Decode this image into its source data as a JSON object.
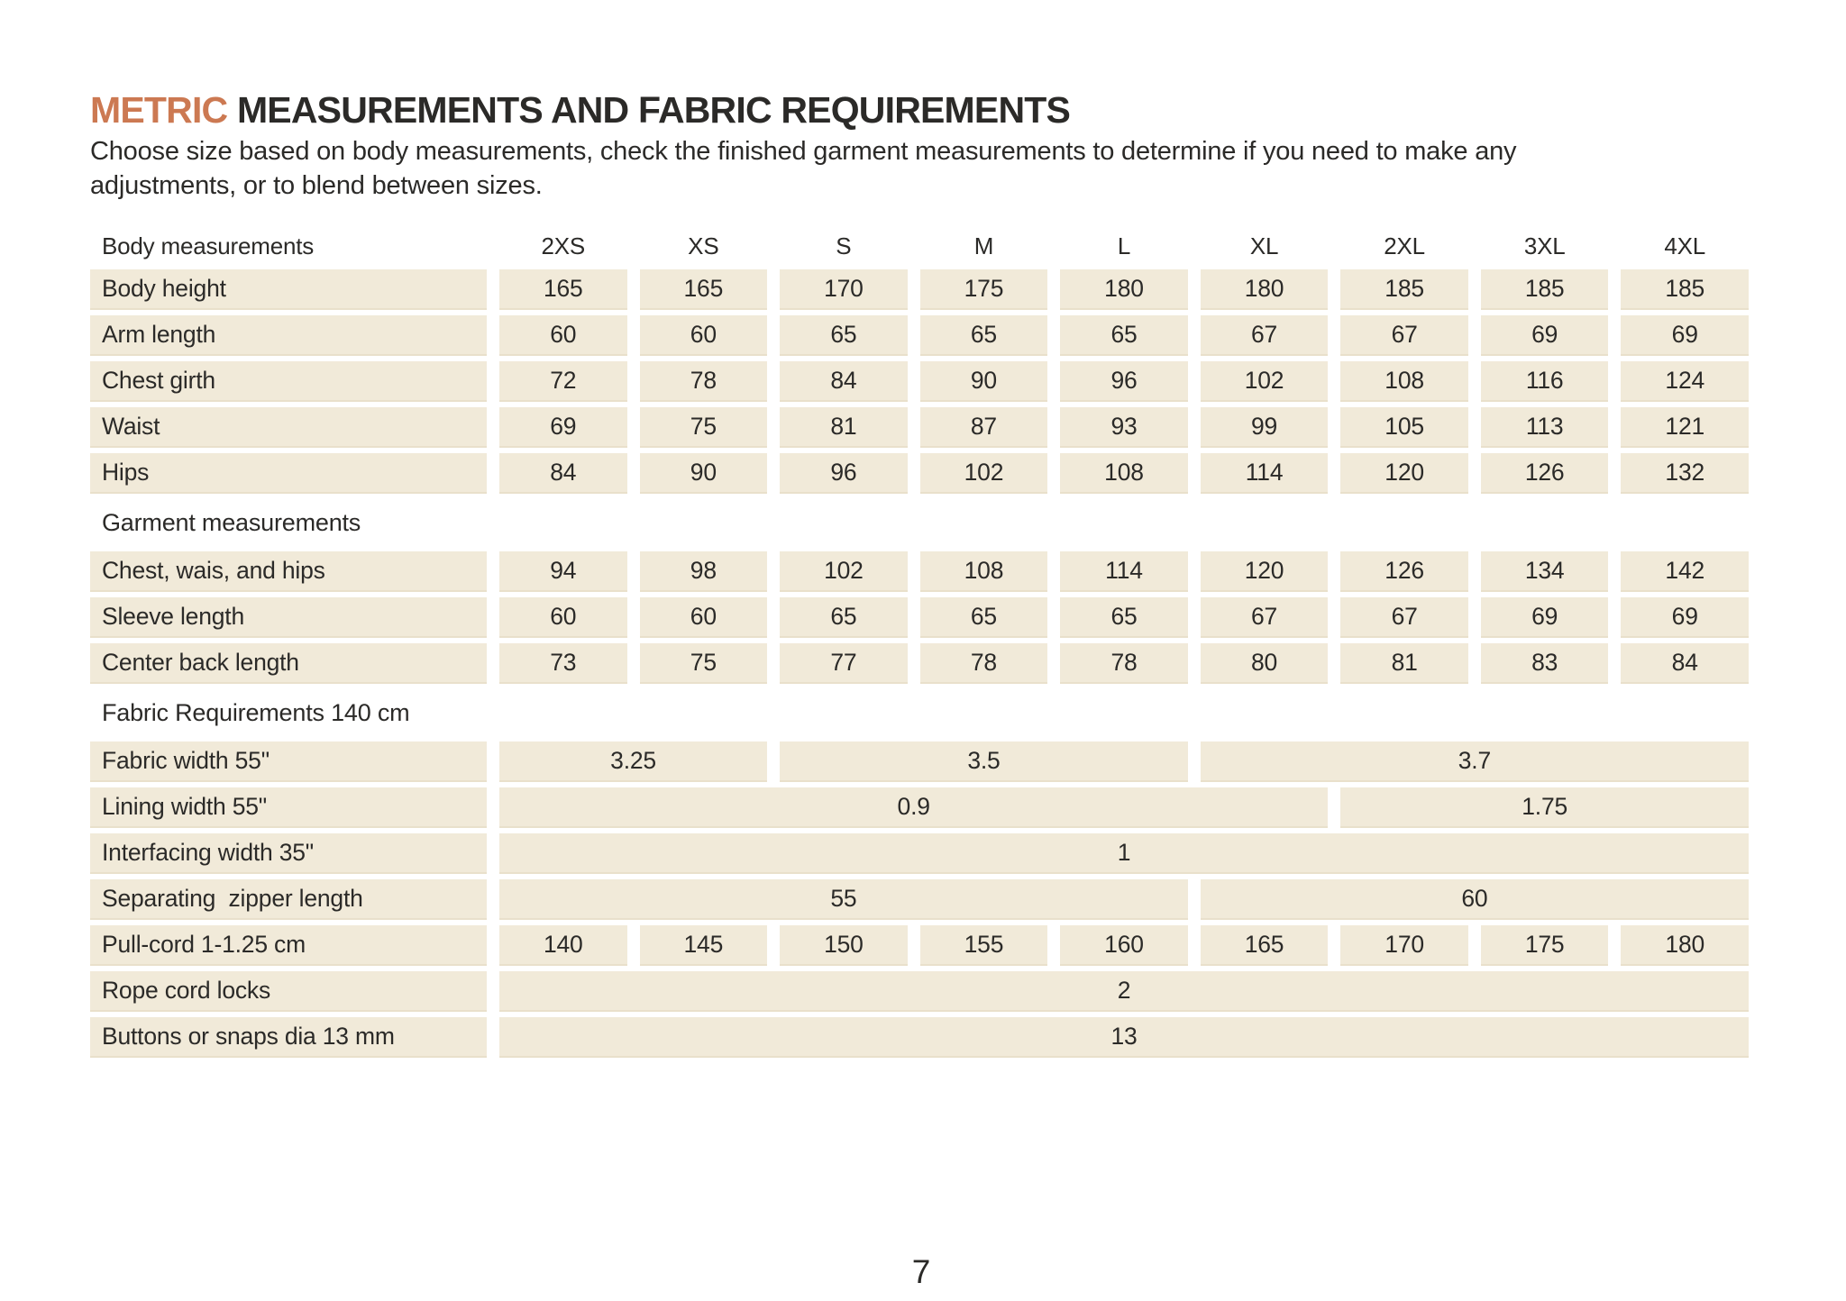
{
  "page": {
    "title_highlight": "METRIC",
    "title_rest": " MEASUREMENTS AND FABRIC REQUIREMENTS",
    "subtitle_line1": "Choose size based on body measurements, check the finished garment measurements to determine if you need to make any",
    "subtitle_line2": "adjustments, or to blend between sizes.",
    "page_number": "7"
  },
  "colors": {
    "accent": "#cc7952",
    "text": "#2b2a28",
    "cell_background": "#f1ead9",
    "cell_edge": "#e9e0cb",
    "page_background": "#ffffff"
  },
  "table": {
    "header": {
      "label": "Body measurements",
      "sizes": [
        "2XS",
        "XS",
        "S",
        "M",
        "L",
        "XL",
        "2XL",
        "3XL",
        "4XL"
      ]
    },
    "body_rows": [
      {
        "label": "Body height",
        "cells": [
          {
            "value": "165",
            "span": 1
          },
          {
            "value": "165",
            "span": 1
          },
          {
            "value": "170",
            "span": 1
          },
          {
            "value": "175",
            "span": 1
          },
          {
            "value": "180",
            "span": 1
          },
          {
            "value": "180",
            "span": 1
          },
          {
            "value": "185",
            "span": 1
          },
          {
            "value": "185",
            "span": 1
          },
          {
            "value": "185",
            "span": 1
          }
        ]
      },
      {
        "label": "Arm length",
        "cells": [
          {
            "value": "60",
            "span": 1
          },
          {
            "value": "60",
            "span": 1
          },
          {
            "value": "65",
            "span": 1
          },
          {
            "value": "65",
            "span": 1
          },
          {
            "value": "65",
            "span": 1
          },
          {
            "value": "67",
            "span": 1
          },
          {
            "value": "67",
            "span": 1
          },
          {
            "value": "69",
            "span": 1
          },
          {
            "value": "69",
            "span": 1
          }
        ]
      },
      {
        "label": "Chest girth",
        "cells": [
          {
            "value": "72",
            "span": 1
          },
          {
            "value": "78",
            "span": 1
          },
          {
            "value": "84",
            "span": 1
          },
          {
            "value": "90",
            "span": 1
          },
          {
            "value": "96",
            "span": 1
          },
          {
            "value": "102",
            "span": 1
          },
          {
            "value": "108",
            "span": 1
          },
          {
            "value": "116",
            "span": 1
          },
          {
            "value": "124",
            "span": 1
          }
        ]
      },
      {
        "label": "Waist",
        "cells": [
          {
            "value": "69",
            "span": 1
          },
          {
            "value": "75",
            "span": 1
          },
          {
            "value": "81",
            "span": 1
          },
          {
            "value": "87",
            "span": 1
          },
          {
            "value": "93",
            "span": 1
          },
          {
            "value": "99",
            "span": 1
          },
          {
            "value": "105",
            "span": 1
          },
          {
            "value": "113",
            "span": 1
          },
          {
            "value": "121",
            "span": 1
          }
        ]
      },
      {
        "label": "Hips",
        "cells": [
          {
            "value": "84",
            "span": 1
          },
          {
            "value": "90",
            "span": 1
          },
          {
            "value": "96",
            "span": 1
          },
          {
            "value": "102",
            "span": 1
          },
          {
            "value": "108",
            "span": 1
          },
          {
            "value": "114",
            "span": 1
          },
          {
            "value": "120",
            "span": 1
          },
          {
            "value": "126",
            "span": 1
          },
          {
            "value": "132",
            "span": 1
          }
        ]
      }
    ],
    "sections": [
      {
        "label": "Garment measurements",
        "rows": [
          {
            "label": "Chest, wais, and hips",
            "cells": [
              {
                "value": "94",
                "span": 1
              },
              {
                "value": "98",
                "span": 1
              },
              {
                "value": "102",
                "span": 1
              },
              {
                "value": "108",
                "span": 1
              },
              {
                "value": "114",
                "span": 1
              },
              {
                "value": "120",
                "span": 1
              },
              {
                "value": "126",
                "span": 1
              },
              {
                "value": "134",
                "span": 1
              },
              {
                "value": "142",
                "span": 1
              }
            ]
          },
          {
            "label": "Sleeve length",
            "cells": [
              {
                "value": "60",
                "span": 1
              },
              {
                "value": "60",
                "span": 1
              },
              {
                "value": "65",
                "span": 1
              },
              {
                "value": "65",
                "span": 1
              },
              {
                "value": "65",
                "span": 1
              },
              {
                "value": "67",
                "span": 1
              },
              {
                "value": "67",
                "span": 1
              },
              {
                "value": "69",
                "span": 1
              },
              {
                "value": "69",
                "span": 1
              }
            ]
          },
          {
            "label": "Center back length",
            "cells": [
              {
                "value": "73",
                "span": 1
              },
              {
                "value": "75",
                "span": 1
              },
              {
                "value": "77",
                "span": 1
              },
              {
                "value": "78",
                "span": 1
              },
              {
                "value": "78",
                "span": 1
              },
              {
                "value": "80",
                "span": 1
              },
              {
                "value": "81",
                "span": 1
              },
              {
                "value": "83",
                "span": 1
              },
              {
                "value": "84",
                "span": 1
              }
            ]
          }
        ]
      },
      {
        "label": "Fabric Requirements 140 cm",
        "rows": [
          {
            "label": "Fabric width 55\"",
            "cells": [
              {
                "value": "3.25",
                "span": 2
              },
              {
                "value": "3.5",
                "span": 3
              },
              {
                "value": "3.7",
                "span": 4
              }
            ]
          },
          {
            "label": "Lining width 55\"",
            "cells": [
              {
                "value": "0.9",
                "span": 6
              },
              {
                "value": "1.75",
                "span": 3
              }
            ]
          },
          {
            "label": "Interfacing width 35\"",
            "cells": [
              {
                "value": "1",
                "span": 9
              }
            ]
          },
          {
            "label": "Separating  zipper length",
            "cells": [
              {
                "value": "55",
                "span": 5
              },
              {
                "value": "60",
                "span": 4
              }
            ]
          },
          {
            "label": "Pull-cord 1-1.25 cm",
            "cells": [
              {
                "value": "140",
                "span": 1
              },
              {
                "value": "145",
                "span": 1
              },
              {
                "value": "150",
                "span": 1
              },
              {
                "value": "155",
                "span": 1
              },
              {
                "value": "160",
                "span": 1
              },
              {
                "value": "165",
                "span": 1
              },
              {
                "value": "170",
                "span": 1
              },
              {
                "value": "175",
                "span": 1
              },
              {
                "value": "180",
                "span": 1
              }
            ]
          },
          {
            "label": "Rope cord locks",
            "cells": [
              {
                "value": "2",
                "span": 9
              }
            ]
          },
          {
            "label": "Buttons or snaps dia 13 mm",
            "cells": [
              {
                "value": "13",
                "span": 9
              }
            ]
          }
        ]
      }
    ]
  }
}
